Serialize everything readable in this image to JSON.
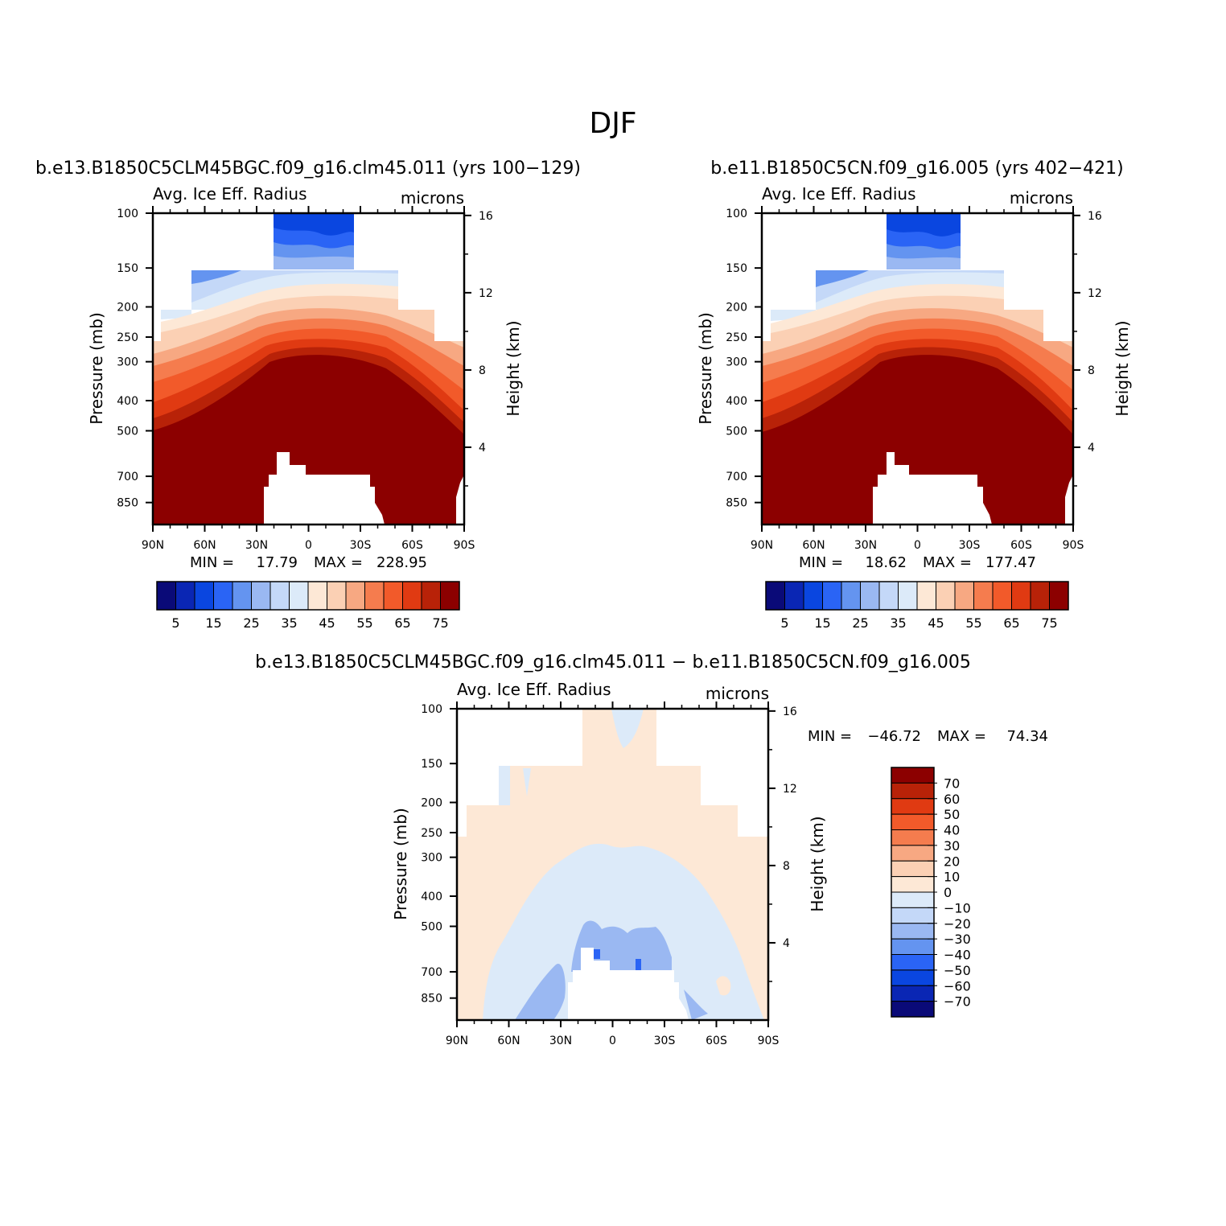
{
  "chart_data": {
    "type": "heatmap",
    "title": "DJF",
    "field": "Avg. Ice Eff. Radius",
    "units": "microns",
    "xlabel": "",
    "ylabel_left": "Pressure (mb)",
    "ylabel_right": "Height (km)",
    "x_ticks": [
      "90N",
      "60N",
      "30N",
      "0",
      "30S",
      "60S",
      "90S"
    ],
    "pressure_ticks": [
      "100",
      "150",
      "200",
      "250",
      "300",
      "400",
      "500",
      "700",
      "850"
    ],
    "height_ticks": [
      "16",
      "12",
      "8",
      "4"
    ],
    "ylim_mb": [
      1000,
      100
    ],
    "panels": [
      {
        "case": "b.e13.B1850C5CLM45BGC.f09_g16.clm45.011 (yrs 100−129)",
        "field": "Avg. Ice Eff. Radius",
        "units": "microns",
        "min_label": "MIN =",
        "min": "17.79",
        "max_label": "MAX =",
        "max": "228.95"
      },
      {
        "case": "b.e11.B1850C5CN.f09_g16.005 (yrs 402−421)",
        "field": "Avg. Ice Eff. Radius",
        "units": "microns",
        "min_label": "MIN =",
        "min": "18.62",
        "max_label": "MAX =",
        "max": "177.47"
      },
      {
        "case": "b.e13.B1850C5CLM45BGC.f09_g16.clm45.011 − b.e11.B1850C5CN.f09_g16.005",
        "field": "Avg. Ice Eff. Radius",
        "units": "microns",
        "min_label": "MIN =",
        "min": "−46.72",
        "max_label": "MAX =",
        "max": "74.34"
      }
    ],
    "colorbar_abs": {
      "orientation": "horizontal",
      "labels": [
        "5",
        "15",
        "25",
        "35",
        "45",
        "55",
        "65",
        "75"
      ],
      "colors": [
        "#0a0a78",
        "#0a26b4",
        "#0a46e0",
        "#2a64f5",
        "#6494f0",
        "#9ab8f2",
        "#c4d8f8",
        "#dceaf9",
        "#fde8d6",
        "#fbd0b4",
        "#f7a882",
        "#f57c4e",
        "#f25a2a",
        "#e03a12",
        "#b82208",
        "#8c0000"
      ]
    },
    "colorbar_diff": {
      "orientation": "vertical",
      "labels": [
        "70",
        "60",
        "50",
        "40",
        "30",
        "20",
        "10",
        "0",
        "−10",
        "−20",
        "−30",
        "−40",
        "−50",
        "−60",
        "−70"
      ],
      "colors": [
        "#8c0000",
        "#b82208",
        "#e03a12",
        "#f25a2a",
        "#f57c4e",
        "#f7a882",
        "#fbd0b4",
        "#fde8d6",
        "#dceaf9",
        "#c4d8f8",
        "#9ab8f2",
        "#6494f0",
        "#2a64f5",
        "#0a46e0",
        "#0a26b4",
        "#0a0a78"
      ]
    }
  }
}
